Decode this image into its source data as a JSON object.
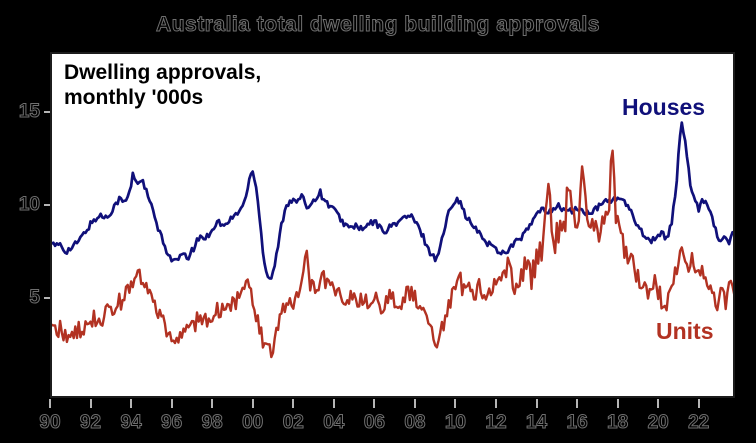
{
  "title": "Australia total dwelling building approvals",
  "plot": {
    "annotation": {
      "line1": "Dwelling approvals,",
      "line2": "monthly '000s"
    },
    "series_labels": {
      "houses": "Houses",
      "units": "Units"
    }
  },
  "colors": {
    "background": "#000000",
    "plot_background": "#ffffff",
    "frame": "#1c1c1c",
    "houses": "#10107a",
    "units": "#b23222",
    "tick": "#b5b5b5",
    "ghost_label": "#6f6f6f"
  },
  "chart_data": {
    "type": "line",
    "title": "Australia total dwelling building approvals",
    "annotation": "Dwelling approvals, monthly '000s",
    "xlabel": "",
    "ylabel": "Dwelling approvals, monthly '000s",
    "xlim": [
      1990.0,
      2023.79
    ],
    "ylim": [
      -0.4,
      18.2
    ],
    "grid": false,
    "legend_position": "direct-labels",
    "x_ticks": [
      {
        "year": 1990,
        "label": "90"
      },
      {
        "year": 1992,
        "label": "92"
      },
      {
        "year": 1994,
        "label": "94"
      },
      {
        "year": 1996,
        "label": "96"
      },
      {
        "year": 1998,
        "label": "98"
      },
      {
        "year": 2000,
        "label": "00"
      },
      {
        "year": 2002,
        "label": "02"
      },
      {
        "year": 2004,
        "label": "04"
      },
      {
        "year": 2006,
        "label": "06"
      },
      {
        "year": 2008,
        "label": "08"
      },
      {
        "year": 2010,
        "label": "10"
      },
      {
        "year": 2012,
        "label": "12"
      },
      {
        "year": 2014,
        "label": "14"
      },
      {
        "year": 2016,
        "label": "16"
      },
      {
        "year": 2018,
        "label": "18"
      },
      {
        "year": 2020,
        "label": "20"
      },
      {
        "year": 2022,
        "label": "22"
      }
    ],
    "y_ticks": [
      {
        "value": 5,
        "label": "5"
      },
      {
        "value": 10,
        "label": "10"
      },
      {
        "value": 15,
        "label": "15"
      }
    ],
    "series": [
      {
        "name": "Houses",
        "color": "#10107a",
        "stroke_width": 2.7,
        "noise_amp": 0.36,
        "points": [
          [
            1990.0,
            8.1
          ],
          [
            1990.25,
            7.7
          ],
          [
            1990.5,
            7.9
          ],
          [
            1990.75,
            7.5
          ],
          [
            1991.0,
            7.6
          ],
          [
            1991.3,
            7.9
          ],
          [
            1991.6,
            8.3
          ],
          [
            1991.9,
            8.8
          ],
          [
            1992.2,
            9.2
          ],
          [
            1992.5,
            9.4
          ],
          [
            1992.8,
            9.3
          ],
          [
            1993.1,
            9.8
          ],
          [
            1993.4,
            10.3
          ],
          [
            1993.7,
            10.1
          ],
          [
            1993.95,
            10.7
          ],
          [
            1994.1,
            11.7
          ],
          [
            1994.3,
            11.1
          ],
          [
            1994.5,
            11.4
          ],
          [
            1994.75,
            10.7
          ],
          [
            1995.0,
            9.9
          ],
          [
            1995.3,
            8.8
          ],
          [
            1995.6,
            7.9
          ],
          [
            1995.9,
            7.2
          ],
          [
            1996.2,
            6.9
          ],
          [
            1996.5,
            7.3
          ],
          [
            1996.8,
            7.1
          ],
          [
            1997.1,
            7.7
          ],
          [
            1997.4,
            8.3
          ],
          [
            1997.7,
            8.2
          ],
          [
            1998.0,
            8.7
          ],
          [
            1998.3,
            9.1
          ],
          [
            1998.6,
            8.8
          ],
          [
            1998.9,
            9.2
          ],
          [
            1999.2,
            9.5
          ],
          [
            1999.5,
            9.9
          ],
          [
            1999.75,
            10.8
          ],
          [
            1999.95,
            12.0
          ],
          [
            2000.15,
            11.2
          ],
          [
            2000.35,
            9.2
          ],
          [
            2000.55,
            7.0
          ],
          [
            2000.8,
            5.9
          ],
          [
            2001.0,
            6.3
          ],
          [
            2001.2,
            7.4
          ],
          [
            2001.4,
            8.8
          ],
          [
            2001.6,
            9.8
          ],
          [
            2001.85,
            10.3
          ],
          [
            2002.1,
            10.1
          ],
          [
            2002.4,
            10.4
          ],
          [
            2002.7,
            9.9
          ],
          [
            2003.0,
            10.2
          ],
          [
            2003.3,
            10.7
          ],
          [
            2003.6,
            10.1
          ],
          [
            2003.9,
            9.9
          ],
          [
            2004.2,
            9.4
          ],
          [
            2004.5,
            9.0
          ],
          [
            2004.8,
            8.7
          ],
          [
            2005.1,
            8.9
          ],
          [
            2005.4,
            8.6
          ],
          [
            2005.7,
            8.9
          ],
          [
            2006.0,
            9.1
          ],
          [
            2006.3,
            8.7
          ],
          [
            2006.6,
            8.6
          ],
          [
            2006.9,
            8.9
          ],
          [
            2007.2,
            9.1
          ],
          [
            2007.5,
            9.3
          ],
          [
            2007.8,
            9.4
          ],
          [
            2008.1,
            8.9
          ],
          [
            2008.4,
            8.3
          ],
          [
            2008.7,
            7.5
          ],
          [
            2009.0,
            7.1
          ],
          [
            2009.2,
            7.5
          ],
          [
            2009.4,
            8.4
          ],
          [
            2009.65,
            9.5
          ],
          [
            2009.85,
            10.1
          ],
          [
            2010.1,
            10.4
          ],
          [
            2010.35,
            9.8
          ],
          [
            2010.6,
            9.2
          ],
          [
            2010.9,
            8.8
          ],
          [
            2011.2,
            8.4
          ],
          [
            2011.5,
            8.0
          ],
          [
            2011.8,
            7.8
          ],
          [
            2012.1,
            7.5
          ],
          [
            2012.4,
            7.4
          ],
          [
            2012.7,
            7.7
          ],
          [
            2013.0,
            8.0
          ],
          [
            2013.3,
            8.3
          ],
          [
            2013.6,
            8.7
          ],
          [
            2013.9,
            9.3
          ],
          [
            2014.2,
            9.7
          ],
          [
            2014.5,
            9.6
          ],
          [
            2014.8,
            9.8
          ],
          [
            2015.1,
            9.9
          ],
          [
            2015.4,
            9.7
          ],
          [
            2015.7,
            9.6
          ],
          [
            2016.0,
            9.8
          ],
          [
            2016.3,
            9.6
          ],
          [
            2016.6,
            9.5
          ],
          [
            2016.9,
            9.7
          ],
          [
            2017.2,
            10.0
          ],
          [
            2017.5,
            10.3
          ],
          [
            2017.8,
            10.2
          ],
          [
            2018.1,
            10.4
          ],
          [
            2018.4,
            10.0
          ],
          [
            2018.7,
            9.5
          ],
          [
            2019.0,
            8.9
          ],
          [
            2019.3,
            8.4
          ],
          [
            2019.6,
            8.0
          ],
          [
            2019.9,
            8.3
          ],
          [
            2020.2,
            8.4
          ],
          [
            2020.45,
            8.2
          ],
          [
            2020.65,
            9.0
          ],
          [
            2020.85,
            10.5
          ],
          [
            2021.05,
            13.2
          ],
          [
            2021.15,
            14.4
          ],
          [
            2021.3,
            13.7
          ],
          [
            2021.45,
            12.4
          ],
          [
            2021.6,
            10.9
          ],
          [
            2021.8,
            10.1
          ],
          [
            2022.0,
            9.8
          ],
          [
            2022.2,
            10.3
          ],
          [
            2022.45,
            10.0
          ],
          [
            2022.65,
            9.5
          ],
          [
            2022.85,
            8.5
          ],
          [
            2023.05,
            8.0
          ],
          [
            2023.25,
            8.3
          ],
          [
            2023.45,
            7.9
          ],
          [
            2023.6,
            8.2
          ],
          [
            2023.79,
            8.6
          ]
        ]
      },
      {
        "name": "Units",
        "color": "#b23222",
        "stroke_width": 2.4,
        "noise_amp": 1.0,
        "noise_boost": {
          "from": 2013.4,
          "to": 2018.5,
          "factor": 1.6
        },
        "points": [
          [
            1990.0,
            3.6
          ],
          [
            1990.25,
            3.2
          ],
          [
            1990.5,
            3.4
          ],
          [
            1990.75,
            2.9
          ],
          [
            1991.0,
            3.0
          ],
          [
            1991.3,
            3.3
          ],
          [
            1991.6,
            3.1
          ],
          [
            1991.9,
            3.5
          ],
          [
            1992.2,
            3.9
          ],
          [
            1992.5,
            3.7
          ],
          [
            1992.8,
            4.1
          ],
          [
            1993.1,
            4.4
          ],
          [
            1993.4,
            4.7
          ],
          [
            1993.7,
            5.0
          ],
          [
            1993.95,
            5.4
          ],
          [
            1994.15,
            5.7
          ],
          [
            1994.35,
            6.5
          ],
          [
            1994.55,
            5.6
          ],
          [
            1994.8,
            5.3
          ],
          [
            1995.05,
            4.9
          ],
          [
            1995.3,
            4.2
          ],
          [
            1995.6,
            3.5
          ],
          [
            1995.9,
            2.9
          ],
          [
            1996.2,
            2.5
          ],
          [
            1996.5,
            3.0
          ],
          [
            1996.8,
            3.3
          ],
          [
            1997.1,
            3.6
          ],
          [
            1997.4,
            3.9
          ],
          [
            1997.7,
            3.7
          ],
          [
            1998.0,
            4.0
          ],
          [
            1998.3,
            4.3
          ],
          [
            1998.6,
            4.1
          ],
          [
            1998.9,
            4.5
          ],
          [
            1999.2,
            4.8
          ],
          [
            1999.5,
            5.1
          ],
          [
            1999.75,
            5.6
          ],
          [
            2000.0,
            4.7
          ],
          [
            2000.3,
            3.4
          ],
          [
            2000.6,
            2.4
          ],
          [
            2000.9,
            2.0
          ],
          [
            2001.1,
            2.9
          ],
          [
            2001.3,
            3.9
          ],
          [
            2001.55,
            4.3
          ],
          [
            2001.8,
            4.6
          ],
          [
            2002.1,
            5.0
          ],
          [
            2002.4,
            5.3
          ],
          [
            2002.65,
            7.9
          ],
          [
            2002.85,
            5.5
          ],
          [
            2003.1,
            5.3
          ],
          [
            2003.4,
            5.9
          ],
          [
            2003.65,
            6.0
          ],
          [
            2003.9,
            5.6
          ],
          [
            2004.2,
            5.1
          ],
          [
            2004.5,
            4.8
          ],
          [
            2004.8,
            5.2
          ],
          [
            2005.1,
            4.7
          ],
          [
            2005.4,
            5.0
          ],
          [
            2005.7,
            4.6
          ],
          [
            2006.0,
            4.9
          ],
          [
            2006.3,
            4.5
          ],
          [
            2006.6,
            4.8
          ],
          [
            2006.9,
            5.1
          ],
          [
            2007.2,
            4.7
          ],
          [
            2007.5,
            5.0
          ],
          [
            2007.8,
            5.3
          ],
          [
            2008.1,
            4.8
          ],
          [
            2008.4,
            4.4
          ],
          [
            2008.7,
            3.5
          ],
          [
            2009.05,
            2.3
          ],
          [
            2009.25,
            2.9
          ],
          [
            2009.45,
            3.8
          ],
          [
            2009.65,
            4.6
          ],
          [
            2009.9,
            5.3
          ],
          [
            2010.15,
            6.3
          ],
          [
            2010.4,
            5.3
          ],
          [
            2010.65,
            5.8
          ],
          [
            2010.9,
            5.1
          ],
          [
            2011.2,
            5.6
          ],
          [
            2011.5,
            4.9
          ],
          [
            2011.8,
            5.4
          ],
          [
            2012.1,
            5.8
          ],
          [
            2012.4,
            6.1
          ],
          [
            2012.6,
            7.0
          ],
          [
            2012.85,
            5.5
          ],
          [
            2013.1,
            6.0
          ],
          [
            2013.4,
            6.4
          ],
          [
            2013.7,
            6.1
          ],
          [
            2014.0,
            6.9
          ],
          [
            2014.3,
            7.8
          ],
          [
            2014.6,
            10.9
          ],
          [
            2014.85,
            8.0
          ],
          [
            2015.1,
            8.6
          ],
          [
            2015.4,
            9.2
          ],
          [
            2015.65,
            11.5
          ],
          [
            2015.9,
            8.8
          ],
          [
            2016.1,
            9.4
          ],
          [
            2016.3,
            12.1
          ],
          [
            2016.55,
            8.6
          ],
          [
            2016.8,
            9.2
          ],
          [
            2017.05,
            8.6
          ],
          [
            2017.3,
            9.0
          ],
          [
            2017.55,
            9.6
          ],
          [
            2017.72,
            12.9
          ],
          [
            2017.95,
            8.8
          ],
          [
            2018.2,
            8.2
          ],
          [
            2018.45,
            7.6
          ],
          [
            2018.7,
            7.0
          ],
          [
            2019.0,
            6.1
          ],
          [
            2019.3,
            5.4
          ],
          [
            2019.55,
            5.0
          ],
          [
            2019.8,
            5.9
          ],
          [
            2020.05,
            5.3
          ],
          [
            2020.3,
            4.2
          ],
          [
            2020.55,
            5.4
          ],
          [
            2020.75,
            6.2
          ],
          [
            2021.0,
            6.8
          ],
          [
            2021.2,
            8.0
          ],
          [
            2021.45,
            6.3
          ],
          [
            2021.7,
            7.1
          ],
          [
            2021.95,
            6.2
          ],
          [
            2022.2,
            6.6
          ],
          [
            2022.45,
            5.8
          ],
          [
            2022.7,
            5.3
          ],
          [
            2022.95,
            4.1
          ],
          [
            2023.15,
            6.0
          ],
          [
            2023.35,
            4.3
          ],
          [
            2023.55,
            5.8
          ],
          [
            2023.79,
            5.3
          ]
        ]
      }
    ]
  }
}
